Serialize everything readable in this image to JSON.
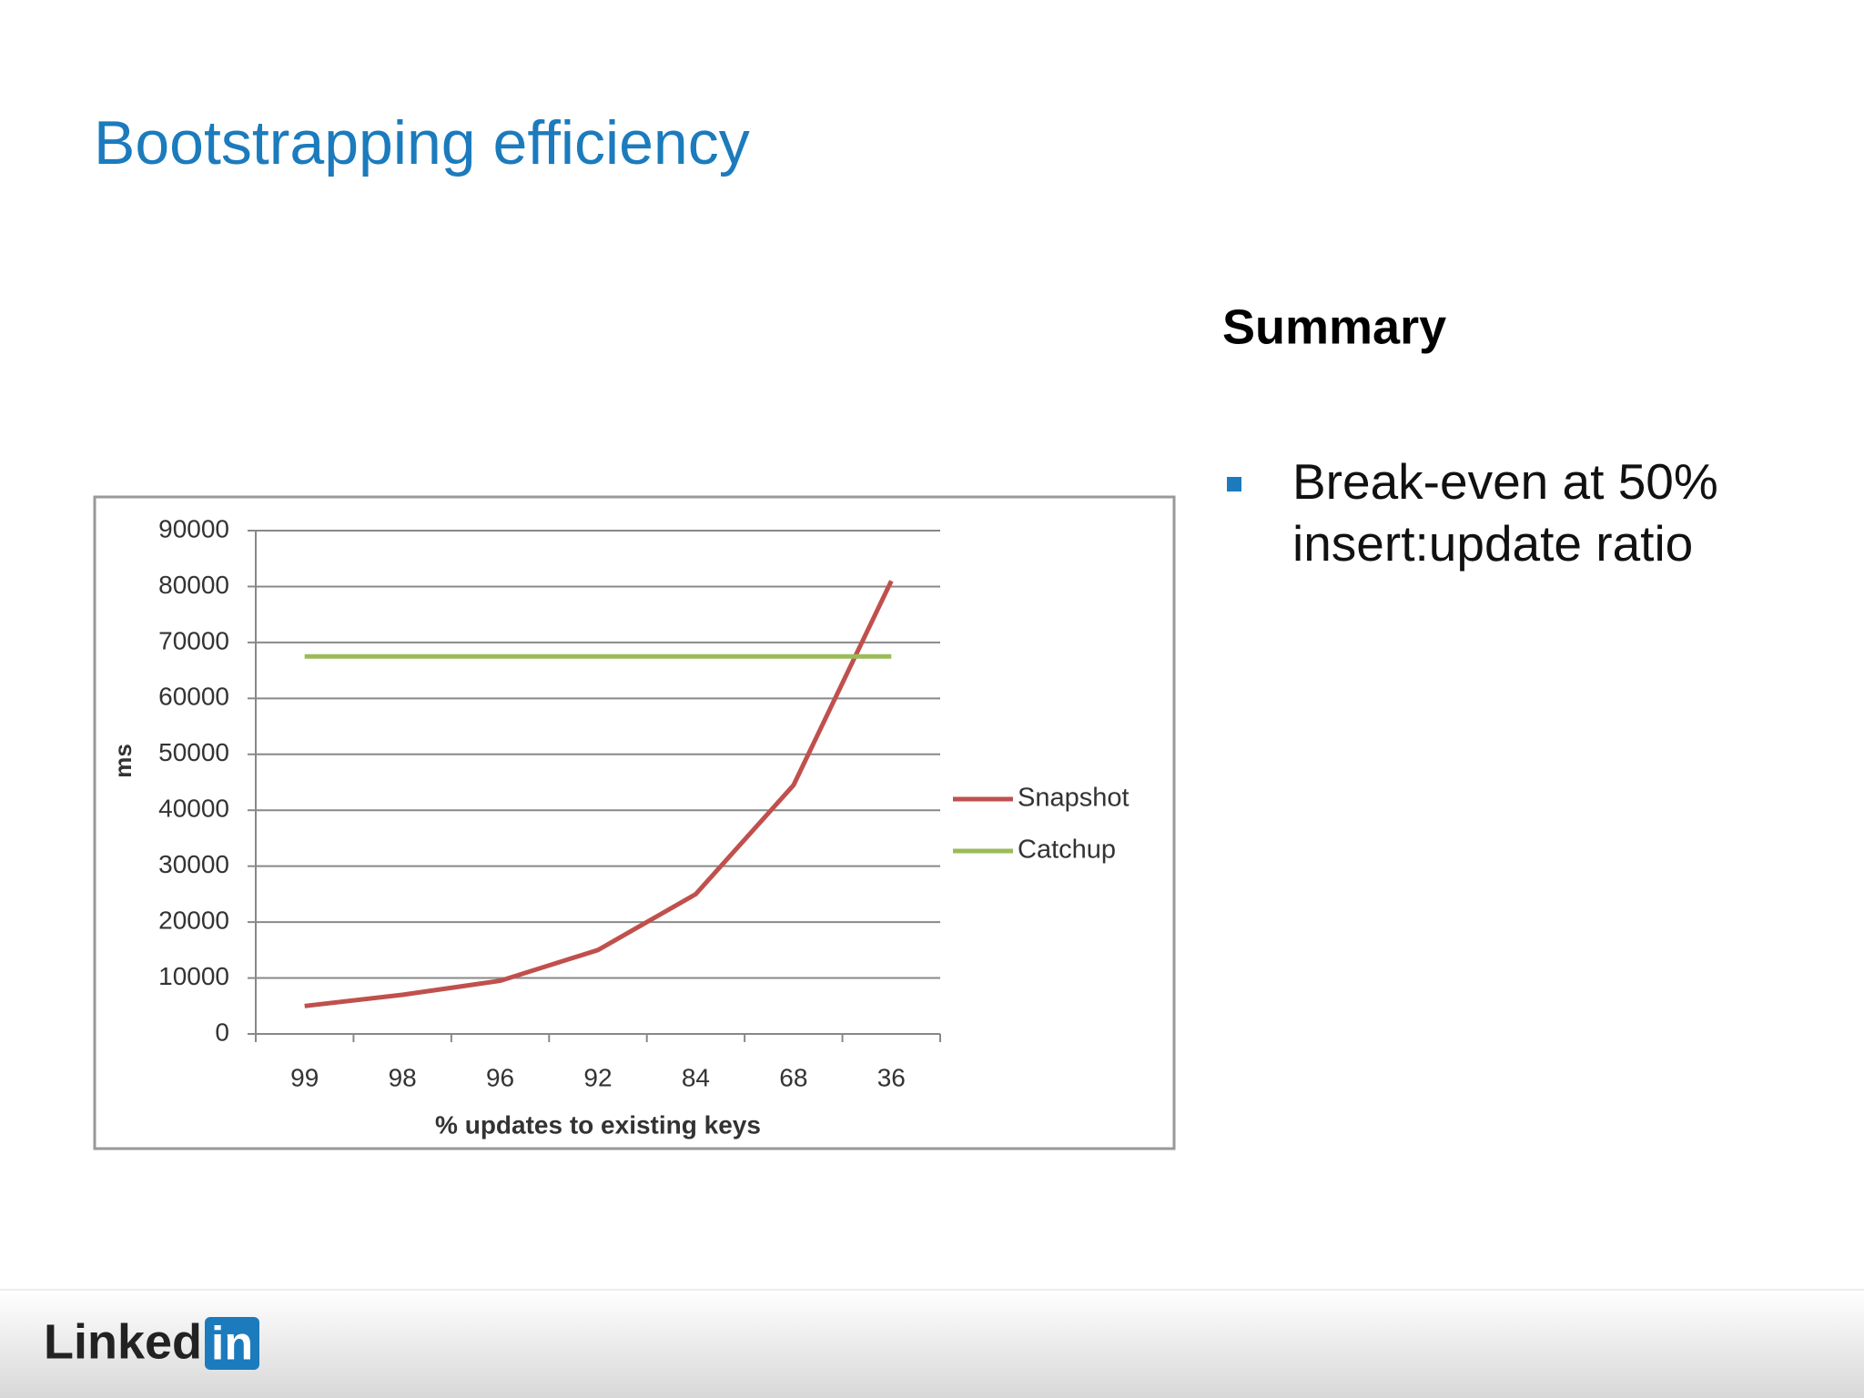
{
  "slide_title": "Bootstrapping efficiency",
  "summary": {
    "heading": "Summary",
    "bullets": [
      "Break-even at 50% insert:update ratio"
    ]
  },
  "logo": {
    "text": "Linked",
    "badge": "in"
  },
  "chart_data": {
    "type": "line",
    "categories": [
      "99",
      "98",
      "96",
      "92",
      "84",
      "68",
      "36"
    ],
    "series": [
      {
        "name": "Snapshot",
        "color": "#c0504d",
        "values": [
          5000,
          7000,
          9500,
          15000,
          25000,
          44500,
          81000
        ]
      },
      {
        "name": "Catchup",
        "color": "#9bbb59",
        "values": [
          67500,
          67500,
          67500,
          67500,
          67500,
          67500,
          67500
        ]
      }
    ],
    "ylabel": "ms",
    "xlabel": "% updates to existing keys",
    "ylim": [
      0,
      90000
    ],
    "yticks": [
      0,
      10000,
      20000,
      30000,
      40000,
      50000,
      60000,
      70000,
      80000,
      90000
    ],
    "grid": true,
    "legend": "right"
  }
}
